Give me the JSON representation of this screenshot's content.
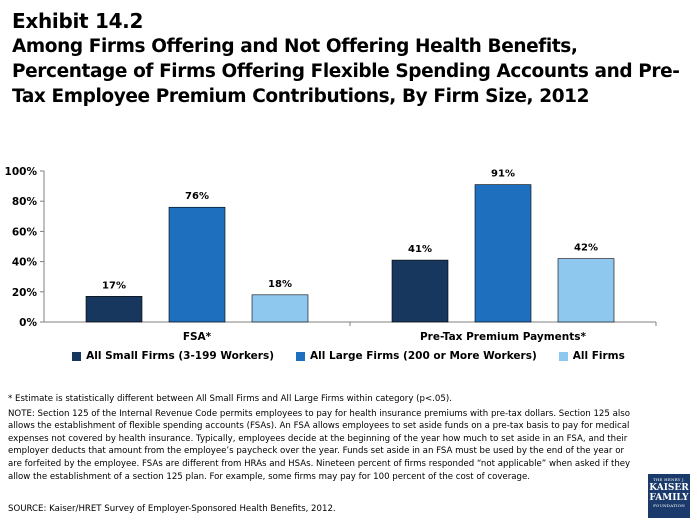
{
  "exhibit": "Exhibit 14.2",
  "title": "Among Firms Offering and Not Offering Health Benefits, Percentage of Firms Offering Flexible Spending Accounts and Pre-Tax Employee Premium Contributions, By Firm Size, 2012",
  "chart_data": {
    "type": "bar",
    "categories": [
      "FSA*",
      "Pre-Tax Premium Payments*"
    ],
    "series": [
      {
        "name": "All Small Firms (3-199 Workers)",
        "values": [
          17,
          41
        ],
        "labels": [
          "17%",
          "41%"
        ],
        "color": "#17375e"
      },
      {
        "name": "All Large Firms (200 or More Workers)",
        "values": [
          76,
          91
        ],
        "labels": [
          "76%",
          "91%"
        ],
        "color": "#1f6fbf"
      },
      {
        "name": "All Firms",
        "values": [
          18,
          42
        ],
        "labels": [
          "18%",
          "42%"
        ],
        "color": "#8ec8ee"
      }
    ],
    "ylim": [
      0,
      100
    ],
    "yticks": [
      0,
      20,
      40,
      60,
      80,
      100
    ],
    "ytick_labels": [
      "0%",
      "20%",
      "40%",
      "60%",
      "80%",
      "100%"
    ],
    "legend": "bottom",
    "grid": false
  },
  "legend_items": [
    {
      "label": "All Small Firms (3-199 Workers)",
      "color": "#17375e"
    },
    {
      "label": "All Large Firms (200 or More Workers)",
      "color": "#1f6fbf"
    },
    {
      "label": "All Firms",
      "color": "#8ec8ee"
    }
  ],
  "footnote": "* Estimate is statistically different between All Small Firms and All Large Firms within category (p<.05).",
  "note": "NOTE: Section 125 of the Internal Revenue Code permits employees to pay for health insurance premiums with pre-tax dollars.  Section 125 also allows the establishment of flexible spending accounts (FSAs).  An FSA allows employees to set aside funds on a pre-tax basis to pay for medical expenses not covered by health insurance.  Typically, employees decide at the beginning of the year how much to set aside in an FSA, and their employer deducts that amount from the employee’s paycheck over the year.  Funds set aside in an FSA must be used by the end of the year or are forfeited by the employee.  FSAs are different from HRAs and HSAs.  Nineteen percent of firms responded “not applicable” when asked if they allow the establishment of a section 125 plan. For example, some firms may pay for 100 percent of the cost of coverage.",
  "source": "SOURCE: Kaiser/HRET Survey of Employer-Sponsored Health Benefits, 2012.",
  "logo": {
    "line1": "THE HENRY J.",
    "line2": "KAISER",
    "line3": "FAMILY",
    "line4": "FOUNDATION"
  }
}
